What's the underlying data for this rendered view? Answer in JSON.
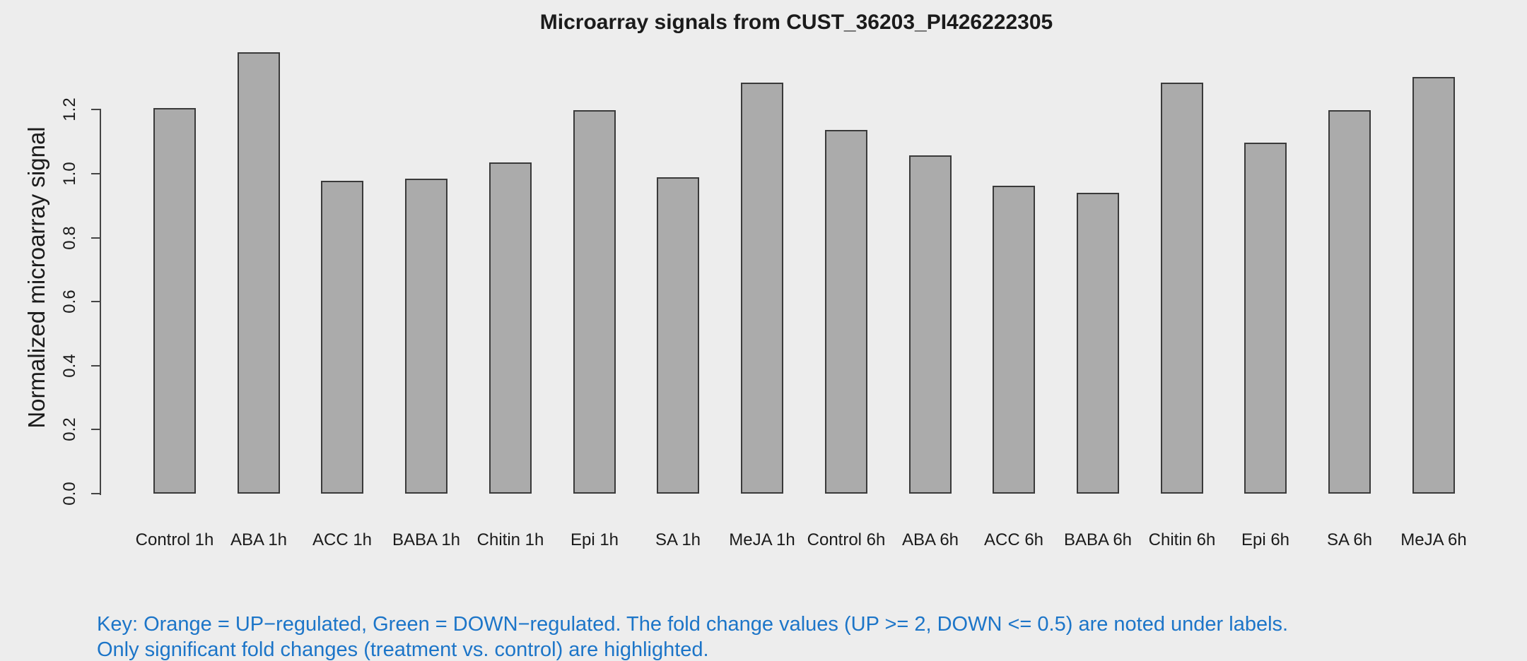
{
  "page": {
    "background": "#EDEDED"
  },
  "chart_data": {
    "type": "bar",
    "title": "Microarray signals from CUST_36203_PI426222305",
    "xlabel": "",
    "ylabel": "Normalized microarray signal",
    "categories": [
      "Control 1h",
      "ABA 1h",
      "ACC 1h",
      "BABA 1h",
      "Chitin 1h",
      "Epi 1h",
      "SA 1h",
      "MeJA 1h",
      "Control 6h",
      "ABA 6h",
      "ACC 6h",
      "BABA 6h",
      "Chitin 6h",
      "Epi 6h",
      "SA 6h",
      "MeJA 6h"
    ],
    "values": [
      1.205,
      1.38,
      0.978,
      0.985,
      1.035,
      1.198,
      0.988,
      1.284,
      1.136,
      1.057,
      0.962,
      0.941,
      1.284,
      1.098,
      1.198,
      1.303
    ],
    "yticks": [
      0.0,
      0.2,
      0.4,
      0.6,
      0.8,
      1.0,
      1.2
    ],
    "ytick_labels": [
      "0.0",
      "0.2",
      "0.4",
      "0.6",
      "0.8",
      "1.0",
      "1.2"
    ],
    "ylim": [
      0,
      1.38
    ],
    "grid": false,
    "legend": "none",
    "bar_fill": "#ABABAB",
    "bar_border": "#3A3A3A",
    "axis_color": "#454545"
  },
  "footnote": {
    "line1": "Key: Orange = UP−regulated, Green = DOWN−regulated. The fold change values (UP >= 2, DOWN <= 0.5) are noted under labels.",
    "line2": "Only significant fold changes (treatment vs. control) are highlighted.",
    "color": "#1C75C8"
  }
}
